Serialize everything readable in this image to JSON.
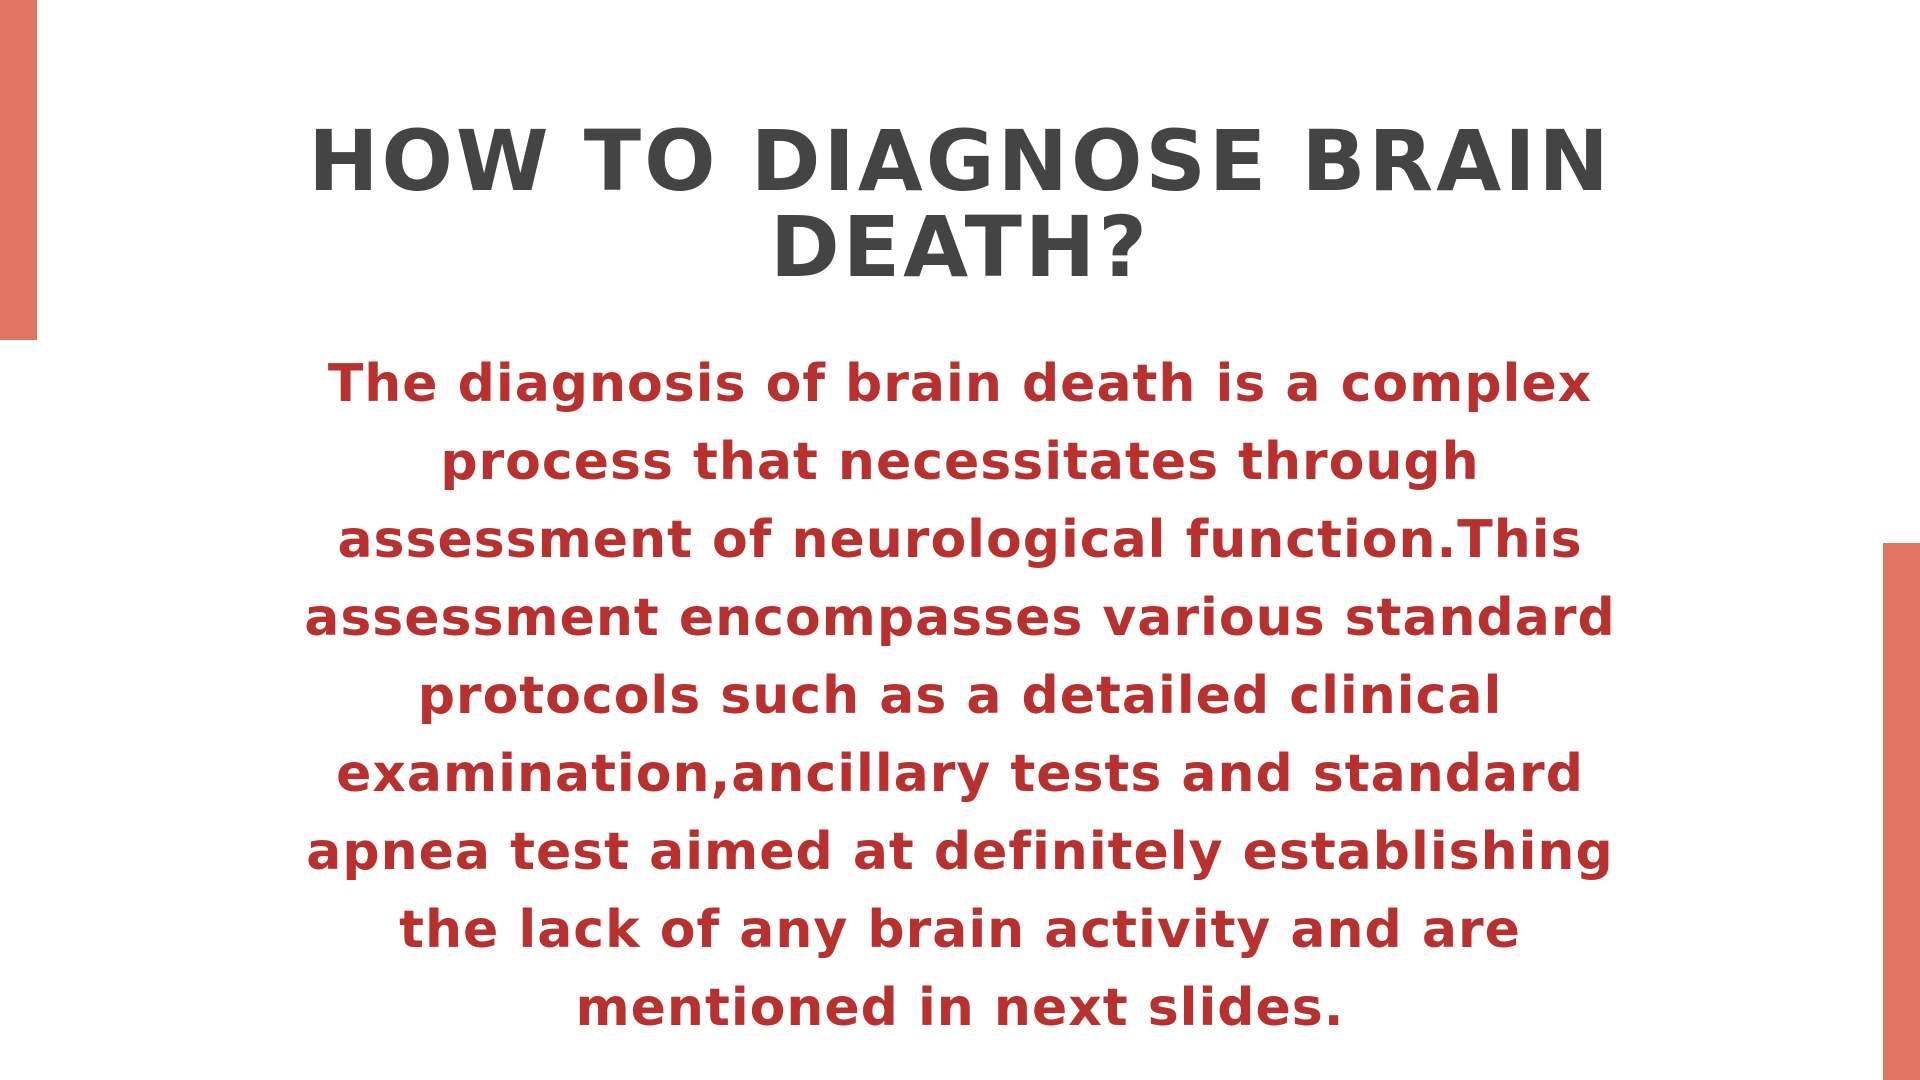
{
  "slide": {
    "title": "HOW TO DIAGNOSE BRAIN DEATH?",
    "body": "The diagnosis of brain death is a complex process that necessitates through assessment of neurological function.This assessment encompasses various standard protocols such as a detailed clinical examination,ancillary tests and standard apnea test aimed at definitely establishing the lack of any brain activity and are mentioned in next slides."
  },
  "colors": {
    "background": "#ffffff",
    "title": "#444444",
    "body": "#b8312f",
    "accent": "#e07563"
  }
}
